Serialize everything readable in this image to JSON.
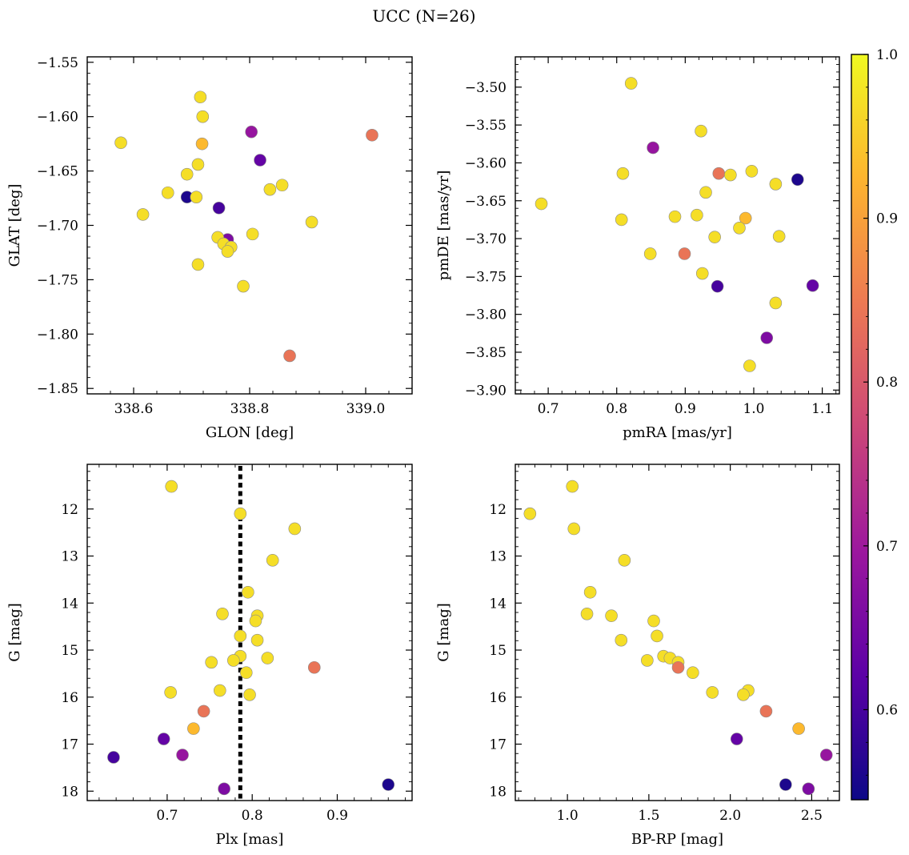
{
  "figure": {
    "title": "UCC (N=26)"
  },
  "colorbar": {
    "min": 0.545,
    "max": 1.0,
    "ticks": [
      0.6,
      0.7,
      0.8,
      0.9,
      1.0
    ],
    "tick_labels": [
      "0.6",
      "0.7",
      "0.8",
      "0.9",
      "1.0"
    ],
    "colormap": "plasma",
    "colormap_stops": [
      "#0d0887",
      "#5c01a6",
      "#9c179e",
      "#cc4778",
      "#ed7953",
      "#fdb42f",
      "#f0f921"
    ]
  },
  "chart_data": [
    {
      "type": "scatter",
      "xlabel": "GLON [deg]",
      "ylabel": "GLAT [deg]",
      "xlim": [
        338.52,
        339.08
      ],
      "ylim": [
        -1.855,
        -1.545
      ],
      "y_inverted": false,
      "xticks": [
        338.6,
        338.8,
        339.0
      ],
      "xtick_labels": [
        "338.6",
        "338.8",
        "339.0"
      ],
      "yticks": [
        -1.55,
        -1.6,
        -1.65,
        -1.7,
        -1.75,
        -1.8,
        -1.85
      ],
      "ytick_labels": [
        "−1.55",
        "−1.60",
        "−1.65",
        "−1.70",
        "−1.75",
        "−1.80",
        "−1.85"
      ],
      "points": [
        {
          "x": 338.715,
          "y": -1.582,
          "c": 0.97
        },
        {
          "x": 338.719,
          "y": -1.6,
          "c": 0.97
        },
        {
          "x": 338.578,
          "y": -1.624,
          "c": 0.97
        },
        {
          "x": 338.718,
          "y": -1.625,
          "c": 0.93
        },
        {
          "x": 338.803,
          "y": -1.614,
          "c": 0.69
        },
        {
          "x": 339.011,
          "y": -1.617,
          "c": 0.84
        },
        {
          "x": 338.818,
          "y": -1.64,
          "c": 0.63
        },
        {
          "x": 338.711,
          "y": -1.644,
          "c": 0.97
        },
        {
          "x": 338.692,
          "y": -1.653,
          "c": 0.97
        },
        {
          "x": 338.835,
          "y": -1.667,
          "c": 0.97
        },
        {
          "x": 338.856,
          "y": -1.663,
          "c": 0.97
        },
        {
          "x": 338.659,
          "y": -1.67,
          "c": 0.97
        },
        {
          "x": 338.692,
          "y": -1.674,
          "c": 0.56
        },
        {
          "x": 338.708,
          "y": -1.674,
          "c": 0.97
        },
        {
          "x": 338.747,
          "y": -1.684,
          "c": 0.6
        },
        {
          "x": 338.616,
          "y": -1.69,
          "c": 0.97
        },
        {
          "x": 338.907,
          "y": -1.697,
          "c": 0.97
        },
        {
          "x": 338.805,
          "y": -1.708,
          "c": 0.97
        },
        {
          "x": 338.762,
          "y": -1.713,
          "c": 0.66
        },
        {
          "x": 338.745,
          "y": -1.711,
          "c": 0.97
        },
        {
          "x": 338.755,
          "y": -1.717,
          "c": 0.97
        },
        {
          "x": 338.768,
          "y": -1.72,
          "c": 0.97
        },
        {
          "x": 338.762,
          "y": -1.724,
          "c": 0.97
        },
        {
          "x": 338.711,
          "y": -1.736,
          "c": 0.97
        },
        {
          "x": 338.789,
          "y": -1.756,
          "c": 0.97
        },
        {
          "x": 338.869,
          "y": -1.82,
          "c": 0.84
        }
      ]
    },
    {
      "type": "scatter",
      "xlabel": "pmRA [mas/yr]",
      "ylabel": "pmDE [mas/yr]",
      "xlim": [
        0.652,
        1.125
      ],
      "ylim": [
        -3.905,
        -3.46
      ],
      "y_inverted": false,
      "xticks": [
        0.7,
        0.8,
        0.9,
        1.0,
        1.1
      ],
      "xtick_labels": [
        "0.7",
        "0.8",
        "0.9",
        "1.0",
        "1.1"
      ],
      "yticks": [
        -3.5,
        -3.55,
        -3.6,
        -3.65,
        -3.7,
        -3.75,
        -3.8,
        -3.85,
        -3.9
      ],
      "ytick_labels": [
        "−3.50",
        "−3.55",
        "−3.60",
        "−3.65",
        "−3.70",
        "−3.75",
        "−3.80",
        "−3.85",
        "−3.90"
      ],
      "points": [
        {
          "x": 0.821,
          "y": -3.495,
          "c": 0.97
        },
        {
          "x": 0.923,
          "y": -3.558,
          "c": 0.97
        },
        {
          "x": 0.853,
          "y": -3.58,
          "c": 0.69
        },
        {
          "x": 0.809,
          "y": -3.614,
          "c": 0.97
        },
        {
          "x": 0.949,
          "y": -3.614,
          "c": 0.84
        },
        {
          "x": 0.966,
          "y": -3.616,
          "c": 0.97
        },
        {
          "x": 0.997,
          "y": -3.611,
          "c": 0.97
        },
        {
          "x": 1.064,
          "y": -3.622,
          "c": 0.56
        },
        {
          "x": 1.032,
          "y": -3.628,
          "c": 0.97
        },
        {
          "x": 0.93,
          "y": -3.639,
          "c": 0.97
        },
        {
          "x": 0.69,
          "y": -3.654,
          "c": 0.97
        },
        {
          "x": 0.807,
          "y": -3.675,
          "c": 0.97
        },
        {
          "x": 0.885,
          "y": -3.671,
          "c": 0.97
        },
        {
          "x": 0.917,
          "y": -3.669,
          "c": 0.97
        },
        {
          "x": 0.988,
          "y": -3.673,
          "c": 0.93
        },
        {
          "x": 0.979,
          "y": -3.686,
          "c": 0.97
        },
        {
          "x": 0.943,
          "y": -3.698,
          "c": 0.97
        },
        {
          "x": 1.037,
          "y": -3.697,
          "c": 0.97
        },
        {
          "x": 0.849,
          "y": -3.72,
          "c": 0.97
        },
        {
          "x": 0.899,
          "y": -3.72,
          "c": 0.84
        },
        {
          "x": 0.925,
          "y": -3.746,
          "c": 0.97
        },
        {
          "x": 0.947,
          "y": -3.763,
          "c": 0.6
        },
        {
          "x": 1.086,
          "y": -3.762,
          "c": 0.63
        },
        {
          "x": 1.032,
          "y": -3.785,
          "c": 0.97
        },
        {
          "x": 1.019,
          "y": -3.831,
          "c": 0.66
        },
        {
          "x": 0.994,
          "y": -3.868,
          "c": 0.97
        }
      ]
    },
    {
      "type": "scatter",
      "xlabel": "Plx [mas]",
      "ylabel": "G [mag]",
      "xlim": [
        0.606,
        0.988
      ],
      "ylim": [
        11.05,
        18.2
      ],
      "y_inverted": true,
      "xticks": [
        0.7,
        0.8,
        0.9
      ],
      "xtick_labels": [
        "0.7",
        "0.8",
        "0.9"
      ],
      "yticks": [
        12,
        13,
        14,
        15,
        16,
        17,
        18
      ],
      "ytick_labels": [
        "12",
        "13",
        "14",
        "15",
        "16",
        "17",
        "18"
      ],
      "reference_line": {
        "x": 0.786
      },
      "points": [
        {
          "x": 0.705,
          "y": 11.52,
          "c": 0.97
        },
        {
          "x": 0.786,
          "y": 12.1,
          "c": 0.97
        },
        {
          "x": 0.85,
          "y": 12.42,
          "c": 0.97
        },
        {
          "x": 0.824,
          "y": 13.09,
          "c": 0.97
        },
        {
          "x": 0.795,
          "y": 13.77,
          "c": 0.97
        },
        {
          "x": 0.765,
          "y": 14.23,
          "c": 0.97
        },
        {
          "x": 0.806,
          "y": 14.27,
          "c": 0.97
        },
        {
          "x": 0.804,
          "y": 14.38,
          "c": 0.97
        },
        {
          "x": 0.786,
          "y": 14.7,
          "c": 0.97
        },
        {
          "x": 0.806,
          "y": 14.79,
          "c": 0.97
        },
        {
          "x": 0.786,
          "y": 15.13,
          "c": 0.97
        },
        {
          "x": 0.818,
          "y": 15.17,
          "c": 0.97
        },
        {
          "x": 0.752,
          "y": 15.26,
          "c": 0.97
        },
        {
          "x": 0.778,
          "y": 15.22,
          "c": 0.97
        },
        {
          "x": 0.873,
          "y": 15.37,
          "c": 0.84
        },
        {
          "x": 0.793,
          "y": 15.48,
          "c": 0.97
        },
        {
          "x": 0.762,
          "y": 15.86,
          "c": 0.97
        },
        {
          "x": 0.704,
          "y": 15.9,
          "c": 0.97
        },
        {
          "x": 0.797,
          "y": 15.95,
          "c": 0.97
        },
        {
          "x": 0.743,
          "y": 16.3,
          "c": 0.84
        },
        {
          "x": 0.731,
          "y": 16.67,
          "c": 0.93
        },
        {
          "x": 0.696,
          "y": 16.89,
          "c": 0.63
        },
        {
          "x": 0.718,
          "y": 17.23,
          "c": 0.69
        },
        {
          "x": 0.637,
          "y": 17.28,
          "c": 0.6
        },
        {
          "x": 0.96,
          "y": 17.86,
          "c": 0.56
        },
        {
          "x": 0.767,
          "y": 17.95,
          "c": 0.66
        }
      ]
    },
    {
      "type": "scatter",
      "xlabel": "BP-RP [mag]",
      "ylabel": "G [mag]",
      "xlim": [
        0.68,
        2.67
      ],
      "ylim": [
        11.05,
        18.2
      ],
      "y_inverted": true,
      "xticks": [
        1.0,
        1.5,
        2.0,
        2.5
      ],
      "xtick_labels": [
        "1.0",
        "1.5",
        "2.0",
        "2.5"
      ],
      "yticks": [
        12,
        13,
        14,
        15,
        16,
        17,
        18
      ],
      "ytick_labels": [
        "12",
        "13",
        "14",
        "15",
        "16",
        "17",
        "18"
      ],
      "points": [
        {
          "x": 1.03,
          "y": 11.52,
          "c": 0.97
        },
        {
          "x": 0.77,
          "y": 12.1,
          "c": 0.97
        },
        {
          "x": 1.04,
          "y": 12.42,
          "c": 0.97
        },
        {
          "x": 1.35,
          "y": 13.09,
          "c": 0.97
        },
        {
          "x": 1.14,
          "y": 13.77,
          "c": 0.97
        },
        {
          "x": 1.12,
          "y": 14.23,
          "c": 0.97
        },
        {
          "x": 1.27,
          "y": 14.27,
          "c": 0.97
        },
        {
          "x": 1.53,
          "y": 14.38,
          "c": 0.97
        },
        {
          "x": 1.55,
          "y": 14.7,
          "c": 0.97
        },
        {
          "x": 1.33,
          "y": 14.79,
          "c": 0.97
        },
        {
          "x": 1.49,
          "y": 15.22,
          "c": 0.97
        },
        {
          "x": 1.59,
          "y": 15.13,
          "c": 0.97
        },
        {
          "x": 1.63,
          "y": 15.17,
          "c": 0.97
        },
        {
          "x": 1.68,
          "y": 15.26,
          "c": 0.97
        },
        {
          "x": 1.68,
          "y": 15.37,
          "c": 0.84
        },
        {
          "x": 1.77,
          "y": 15.48,
          "c": 0.97
        },
        {
          "x": 2.11,
          "y": 15.86,
          "c": 0.97
        },
        {
          "x": 1.89,
          "y": 15.9,
          "c": 0.97
        },
        {
          "x": 2.08,
          "y": 15.95,
          "c": 0.97
        },
        {
          "x": 2.22,
          "y": 16.3,
          "c": 0.84
        },
        {
          "x": 2.42,
          "y": 16.67,
          "c": 0.93
        },
        {
          "x": 2.04,
          "y": 16.89,
          "c": 0.63
        },
        {
          "x": 2.59,
          "y": 17.23,
          "c": 0.69
        },
        {
          "x": 2.34,
          "y": 17.86,
          "c": 0.56
        },
        {
          "x": 2.48,
          "y": 17.95,
          "c": 0.66
        }
      ]
    }
  ]
}
